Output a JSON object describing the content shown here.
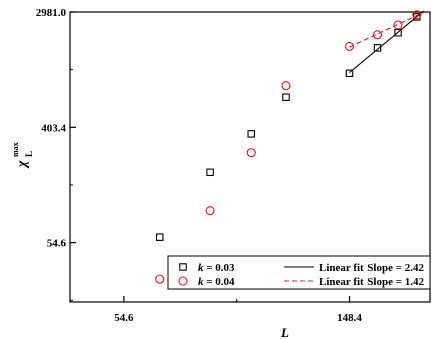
{
  "chart_data": {
    "type": "scatter",
    "title": "",
    "xlabel": "L",
    "ylabel": {
      "main": "χ",
      "sub": "L",
      "sup": "max"
    },
    "x_scale": "log",
    "y_scale": "log",
    "xlim": [
      43,
      212
    ],
    "ylim": [
      19.5,
      2981.0
    ],
    "x_ticks": [
      {
        "value": 54.6,
        "label": "54.6"
      },
      {
        "value": 148.4,
        "label": "148.4"
      }
    ],
    "y_ticks": [
      {
        "value": 54.6,
        "label": "54.6"
      },
      {
        "value": 403.4,
        "label": "403.4"
      },
      {
        "value": 2981.0,
        "label": "2981.0"
      }
    ],
    "series": [
      {
        "name": "k = 0.03",
        "marker": "square",
        "color": "#000000",
        "points": [
          {
            "x": 64,
            "y": 60
          },
          {
            "x": 80,
            "y": 185
          },
          {
            "x": 96,
            "y": 360
          },
          {
            "x": 112,
            "y": 680
          },
          {
            "x": 148.4,
            "y": 1030
          },
          {
            "x": 168,
            "y": 1600
          },
          {
            "x": 184,
            "y": 2080
          },
          {
            "x": 200,
            "y": 2740
          }
        ],
        "fit": {
          "label": "Linear fit",
          "style": "solid",
          "slope_label": "Slope = 2.42",
          "x_range": [
            148.4,
            200
          ]
        }
      },
      {
        "name": "k = 0.04",
        "marker": "circle",
        "color": "#e8141b",
        "points": [
          {
            "x": 64,
            "y": 29
          },
          {
            "x": 80,
            "y": 95
          },
          {
            "x": 96,
            "y": 260
          },
          {
            "x": 112,
            "y": 830
          },
          {
            "x": 148.4,
            "y": 1640
          },
          {
            "x": 168,
            "y": 2010
          },
          {
            "x": 184,
            "y": 2380
          },
          {
            "x": 200,
            "y": 2840
          }
        ],
        "fit": {
          "label": "Linear fit",
          "style": "dashed",
          "slope_label": "Slope = 1.42",
          "x_range": [
            148.4,
            200
          ]
        }
      }
    ],
    "legend": {
      "placement": "bottom-right"
    },
    "grid": false
  }
}
